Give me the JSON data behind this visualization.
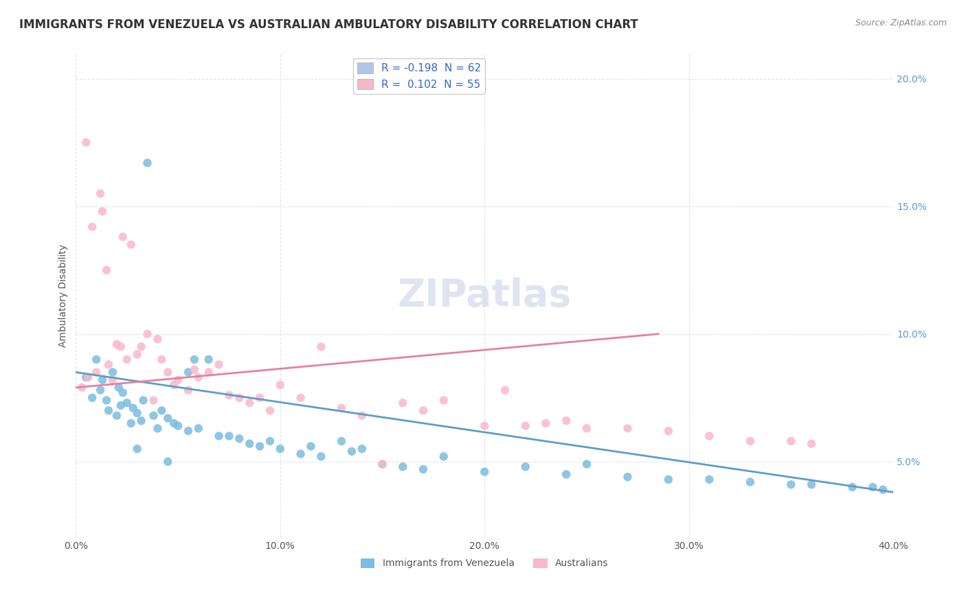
{
  "title": "IMMIGRANTS FROM VENEZUELA VS AUSTRALIAN AMBULATORY DISABILITY CORRELATION CHART",
  "source": "Source: ZipAtlas.com",
  "ylabel": "Ambulatory Disability",
  "xlim": [
    0.0,
    0.4
  ],
  "ylim": [
    0.02,
    0.21
  ],
  "x_ticks": [
    0.0,
    0.1,
    0.2,
    0.3,
    0.4
  ],
  "x_tick_labels": [
    "0.0%",
    "10.0%",
    "20.0%",
    "30.0%",
    "40.0%"
  ],
  "y_ticks": [
    0.05,
    0.1,
    0.15,
    0.2
  ],
  "y_tick_labels": [
    "5.0%",
    "10.0%",
    "15.0%",
    "20.0%"
  ],
  "legend_entries": [
    {
      "label": "R = -0.198  N = 62",
      "color": "#aec6e8"
    },
    {
      "label": "R =  0.102  N = 55",
      "color": "#f4b8c8"
    }
  ],
  "legend_bottom": [
    "Immigrants from Venezuela",
    "Australians"
  ],
  "blue_dot_color": "#7bbce0",
  "pink_dot_color": "#f9b8cc",
  "blue_line_color": "#5b9dc9",
  "pink_line_color": "#e87f9c",
  "watermark": "ZIPatlas",
  "blue_scatter_x": [
    0.005,
    0.008,
    0.01,
    0.012,
    0.013,
    0.015,
    0.016,
    0.018,
    0.02,
    0.021,
    0.022,
    0.023,
    0.025,
    0.027,
    0.028,
    0.03,
    0.032,
    0.033,
    0.035,
    0.038,
    0.04,
    0.042,
    0.045,
    0.048,
    0.05,
    0.055,
    0.058,
    0.06,
    0.065,
    0.07,
    0.08,
    0.085,
    0.09,
    0.1,
    0.11,
    0.12,
    0.13,
    0.14,
    0.15,
    0.16,
    0.17,
    0.18,
    0.2,
    0.22,
    0.24,
    0.25,
    0.27,
    0.29,
    0.31,
    0.33,
    0.35,
    0.36,
    0.38,
    0.39,
    0.395,
    0.03,
    0.045,
    0.055,
    0.075,
    0.095,
    0.115,
    0.135
  ],
  "blue_scatter_y": [
    0.083,
    0.075,
    0.09,
    0.078,
    0.082,
    0.074,
    0.07,
    0.085,
    0.068,
    0.079,
    0.072,
    0.077,
    0.073,
    0.065,
    0.071,
    0.069,
    0.066,
    0.074,
    0.167,
    0.068,
    0.063,
    0.07,
    0.067,
    0.065,
    0.064,
    0.085,
    0.09,
    0.063,
    0.09,
    0.06,
    0.059,
    0.057,
    0.056,
    0.055,
    0.053,
    0.052,
    0.058,
    0.055,
    0.049,
    0.048,
    0.047,
    0.052,
    0.046,
    0.048,
    0.045,
    0.049,
    0.044,
    0.043,
    0.043,
    0.042,
    0.041,
    0.041,
    0.04,
    0.04,
    0.039,
    0.055,
    0.05,
    0.062,
    0.06,
    0.058,
    0.056,
    0.054
  ],
  "pink_scatter_x": [
    0.003,
    0.005,
    0.006,
    0.008,
    0.01,
    0.012,
    0.013,
    0.015,
    0.016,
    0.018,
    0.02,
    0.022,
    0.023,
    0.025,
    0.027,
    0.03,
    0.032,
    0.035,
    0.038,
    0.04,
    0.042,
    0.045,
    0.048,
    0.05,
    0.055,
    0.058,
    0.06,
    0.065,
    0.07,
    0.075,
    0.08,
    0.085,
    0.09,
    0.095,
    0.1,
    0.11,
    0.12,
    0.13,
    0.14,
    0.15,
    0.16,
    0.17,
    0.18,
    0.2,
    0.21,
    0.22,
    0.23,
    0.24,
    0.25,
    0.27,
    0.29,
    0.31,
    0.33,
    0.35,
    0.36
  ],
  "pink_scatter_y": [
    0.079,
    0.175,
    0.083,
    0.142,
    0.085,
    0.155,
    0.148,
    0.125,
    0.088,
    0.082,
    0.096,
    0.095,
    0.138,
    0.09,
    0.135,
    0.092,
    0.095,
    0.1,
    0.074,
    0.098,
    0.09,
    0.085,
    0.08,
    0.082,
    0.078,
    0.086,
    0.083,
    0.085,
    0.088,
    0.076,
    0.075,
    0.073,
    0.075,
    0.07,
    0.08,
    0.075,
    0.095,
    0.071,
    0.068,
    0.049,
    0.073,
    0.07,
    0.074,
    0.064,
    0.078,
    0.064,
    0.065,
    0.066,
    0.063,
    0.063,
    0.062,
    0.06,
    0.058,
    0.058,
    0.057
  ],
  "blue_trend_x": [
    0.0,
    0.4
  ],
  "blue_trend_y": [
    0.085,
    0.038
  ],
  "pink_trend_x": [
    0.0,
    0.285
  ],
  "pink_trend_y": [
    0.079,
    0.1
  ],
  "grid_color": "#d0d8e8",
  "bg_color": "#ffffff",
  "title_fontsize": 12,
  "axis_label_fontsize": 10,
  "tick_fontsize": 10,
  "watermark_color": "#c8d4e8",
  "watermark_fontsize": 40,
  "legend_text_color": "#3366cc"
}
